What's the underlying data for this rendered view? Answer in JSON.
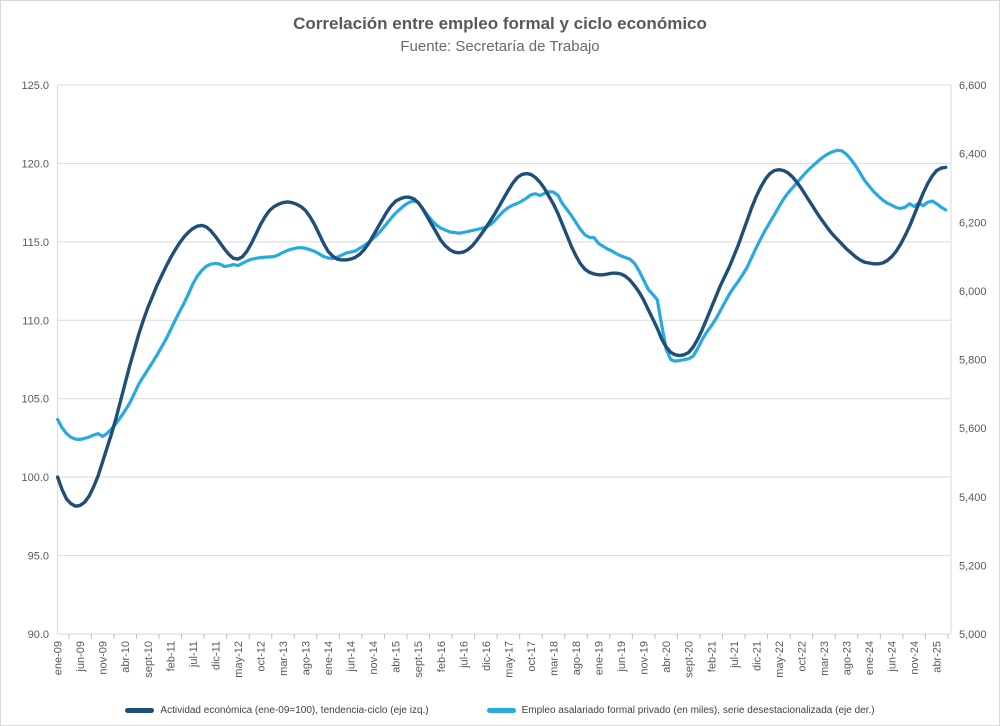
{
  "title": "Correlación entre empleo formal y ciclo económico",
  "subtitle": "Fuente: Secretaría de Trabajo",
  "colors": {
    "series_activity": "#1F4E79",
    "series_employment": "#27A9E1",
    "gridline": "#D9D9D9",
    "axis_line": "#D9D9D9",
    "tick_mark": "#BFBFBF",
    "tick_text": "#595959",
    "title_text": "#595959",
    "legend_text": "#3F3F3F"
  },
  "chart_data": {
    "type": "line",
    "title": "Correlación entre empleo formal y ciclo económico",
    "subtitle": "Fuente: Secretaría de Trabajo",
    "frequency": "monthly",
    "x_start": "ene-09",
    "x_end": "jun-25",
    "x_tick_step_months": 5,
    "x_tick_labels": [
      "ene-09",
      "jun-09",
      "nov-09",
      "abr-10",
      "sept-10",
      "feb-11",
      "jul-11",
      "dic-11",
      "may-12",
      "oct-12",
      "mar-13",
      "ago-13",
      "ene-14",
      "jun-14",
      "nov-14",
      "abr-15",
      "sept-15",
      "feb-16",
      "jul-16",
      "dic-16",
      "may-17",
      "oct-17",
      "mar-18",
      "ago-18",
      "ene-19",
      "jun-19",
      "nov-19",
      "abr-20",
      "sept-20",
      "feb-21",
      "jul-21",
      "dic-21",
      "may-22",
      "oct-22",
      "mar-23",
      "ago-23",
      "ene-24",
      "jun-24",
      "nov-24",
      "abr-25"
    ],
    "left_axis": {
      "min": 90,
      "max": 125,
      "tick_interval": 5,
      "tick_labels": [
        "125.0",
        "120.0",
        "115.0",
        "110.0",
        "105.0",
        "100.0",
        "95.0",
        "90.0"
      ]
    },
    "right_axis": {
      "min": 5000,
      "max": 6600,
      "tick_interval": 200,
      "tick_labels": [
        "6,600",
        "6,400",
        "6,200",
        "6,000",
        "5,800",
        "5,600",
        "5,400",
        "5,200",
        "5,000"
      ]
    },
    "grid": "horizontal",
    "legend_position": "bottom",
    "series": [
      {
        "name": "Actividad económica (ene-09=100), tendencia-ciclo (eje izq.)",
        "axis": "left",
        "color": "#1F4E79",
        "values": [
          100.0,
          99.2,
          98.6,
          98.3,
          98.15,
          98.2,
          98.4,
          98.8,
          99.4,
          100.1,
          101.0,
          101.9,
          102.8,
          103.8,
          104.9,
          106.0,
          107.1,
          108.1,
          109.1,
          110.0,
          110.8,
          111.5,
          112.2,
          112.8,
          113.4,
          113.95,
          114.45,
          114.9,
          115.3,
          115.6,
          115.85,
          116.0,
          116.05,
          115.95,
          115.7,
          115.35,
          114.95,
          114.55,
          114.2,
          113.95,
          113.9,
          114.05,
          114.4,
          114.9,
          115.5,
          116.1,
          116.6,
          117.0,
          117.25,
          117.4,
          117.5,
          117.55,
          117.5,
          117.4,
          117.25,
          117.0,
          116.6,
          116.1,
          115.5,
          114.9,
          114.4,
          114.1,
          113.9,
          113.85,
          113.85,
          113.9,
          114.0,
          114.2,
          114.5,
          114.9,
          115.4,
          115.9,
          116.4,
          116.9,
          117.3,
          117.6,
          117.75,
          117.85,
          117.85,
          117.75,
          117.5,
          117.1,
          116.6,
          116.1,
          115.6,
          115.1,
          114.75,
          114.5,
          114.35,
          114.3,
          114.35,
          114.5,
          114.75,
          115.1,
          115.5,
          115.9,
          116.35,
          116.8,
          117.3,
          117.8,
          118.3,
          118.75,
          119.1,
          119.3,
          119.35,
          119.3,
          119.1,
          118.8,
          118.4,
          117.9,
          117.4,
          116.8,
          116.1,
          115.4,
          114.7,
          114.1,
          113.6,
          113.25,
          113.05,
          112.95,
          112.9,
          112.9,
          112.95,
          113.0,
          113.0,
          112.95,
          112.8,
          112.55,
          112.2,
          111.8,
          111.3,
          110.7,
          110.1,
          109.5,
          108.8,
          108.3,
          107.95,
          107.8,
          107.75,
          107.8,
          107.95,
          108.3,
          108.8,
          109.4,
          110.1,
          110.8,
          111.5,
          112.2,
          112.8,
          113.4,
          114.1,
          114.8,
          115.6,
          116.4,
          117.2,
          117.9,
          118.5,
          119.0,
          119.35,
          119.55,
          119.6,
          119.55,
          119.4,
          119.15,
          118.8,
          118.4,
          117.95,
          117.5,
          117.05,
          116.6,
          116.2,
          115.8,
          115.45,
          115.15,
          114.85,
          114.55,
          114.3,
          114.05,
          113.85,
          113.7,
          113.65,
          113.6,
          113.6,
          113.65,
          113.8,
          114.05,
          114.4,
          114.85,
          115.4,
          116.0,
          116.7,
          117.4,
          118.1,
          118.7,
          119.2,
          119.55,
          119.7,
          119.75
        ]
      },
      {
        "name": "Empleo asalariado formal privado (en miles), serie desestacionalizada (eje der.)",
        "axis": "right",
        "color": "#27A9E1",
        "values": [
          5625,
          5601,
          5584,
          5573,
          5568,
          5567,
          5570,
          5574,
          5580,
          5584,
          5576,
          5585,
          5598,
          5614,
          5632,
          5652,
          5673,
          5700,
          5728,
          5750,
          5770,
          5791,
          5812,
          5835,
          5858,
          5885,
          5912,
          5938,
          5963,
          5990,
          6020,
          6043,
          6060,
          6072,
          6078,
          6080,
          6078,
          6071,
          6073,
          6077,
          6074,
          6080,
          6087,
          6092,
          6095,
          6097,
          6098,
          6099,
          6100,
          6105,
          6112,
          6118,
          6122,
          6125,
          6126,
          6124,
          6120,
          6115,
          6108,
          6100,
          6096,
          6094,
          6098,
          6104,
          6110,
          6113,
          6116,
          6124,
          6132,
          6142,
          6153,
          6165,
          6180,
          6196,
          6212,
          6227,
          6239,
          6250,
          6258,
          6262,
          6258,
          6240,
          6222,
          6205,
          6192,
          6183,
          6177,
          6172,
          6170,
          6168,
          6170,
          6173,
          6176,
          6179,
          6182,
          6186,
          6193,
          6205,
          6220,
          6233,
          6243,
          6250,
          6255,
          6262,
          6270,
          6280,
          6283,
          6278,
          6284,
          6289,
          6288,
          6278,
          6254,
          6237,
          6219,
          6199,
          6179,
          6163,
          6156,
          6155,
          6138,
          6130,
          6122,
          6116,
          6108,
          6102,
          6097,
          6092,
          6080,
          6058,
          6032,
          6005,
          5990,
          5975,
          5900,
          5830,
          5800,
          5795,
          5797,
          5800,
          5802,
          5810,
          5832,
          5858,
          5880,
          5898,
          5918,
          5942,
          5966,
          5990,
          6010,
          6028,
          6048,
          6070,
          6098,
          6126,
          6152,
          6178,
          6200,
          6222,
          6245,
          6267,
          6285,
          6300,
          6315,
          6330,
          6345,
          6358,
          6370,
          6382,
          6392,
          6400,
          6406,
          6410,
          6408,
          6398,
          6383,
          6365,
          6344,
          6322,
          6306,
          6290,
          6277,
          6265,
          6256,
          6250,
          6243,
          6240,
          6244,
          6254,
          6246,
          6256,
          6248,
          6258,
          6262,
          6254,
          6244,
          6236
        ]
      }
    ]
  }
}
